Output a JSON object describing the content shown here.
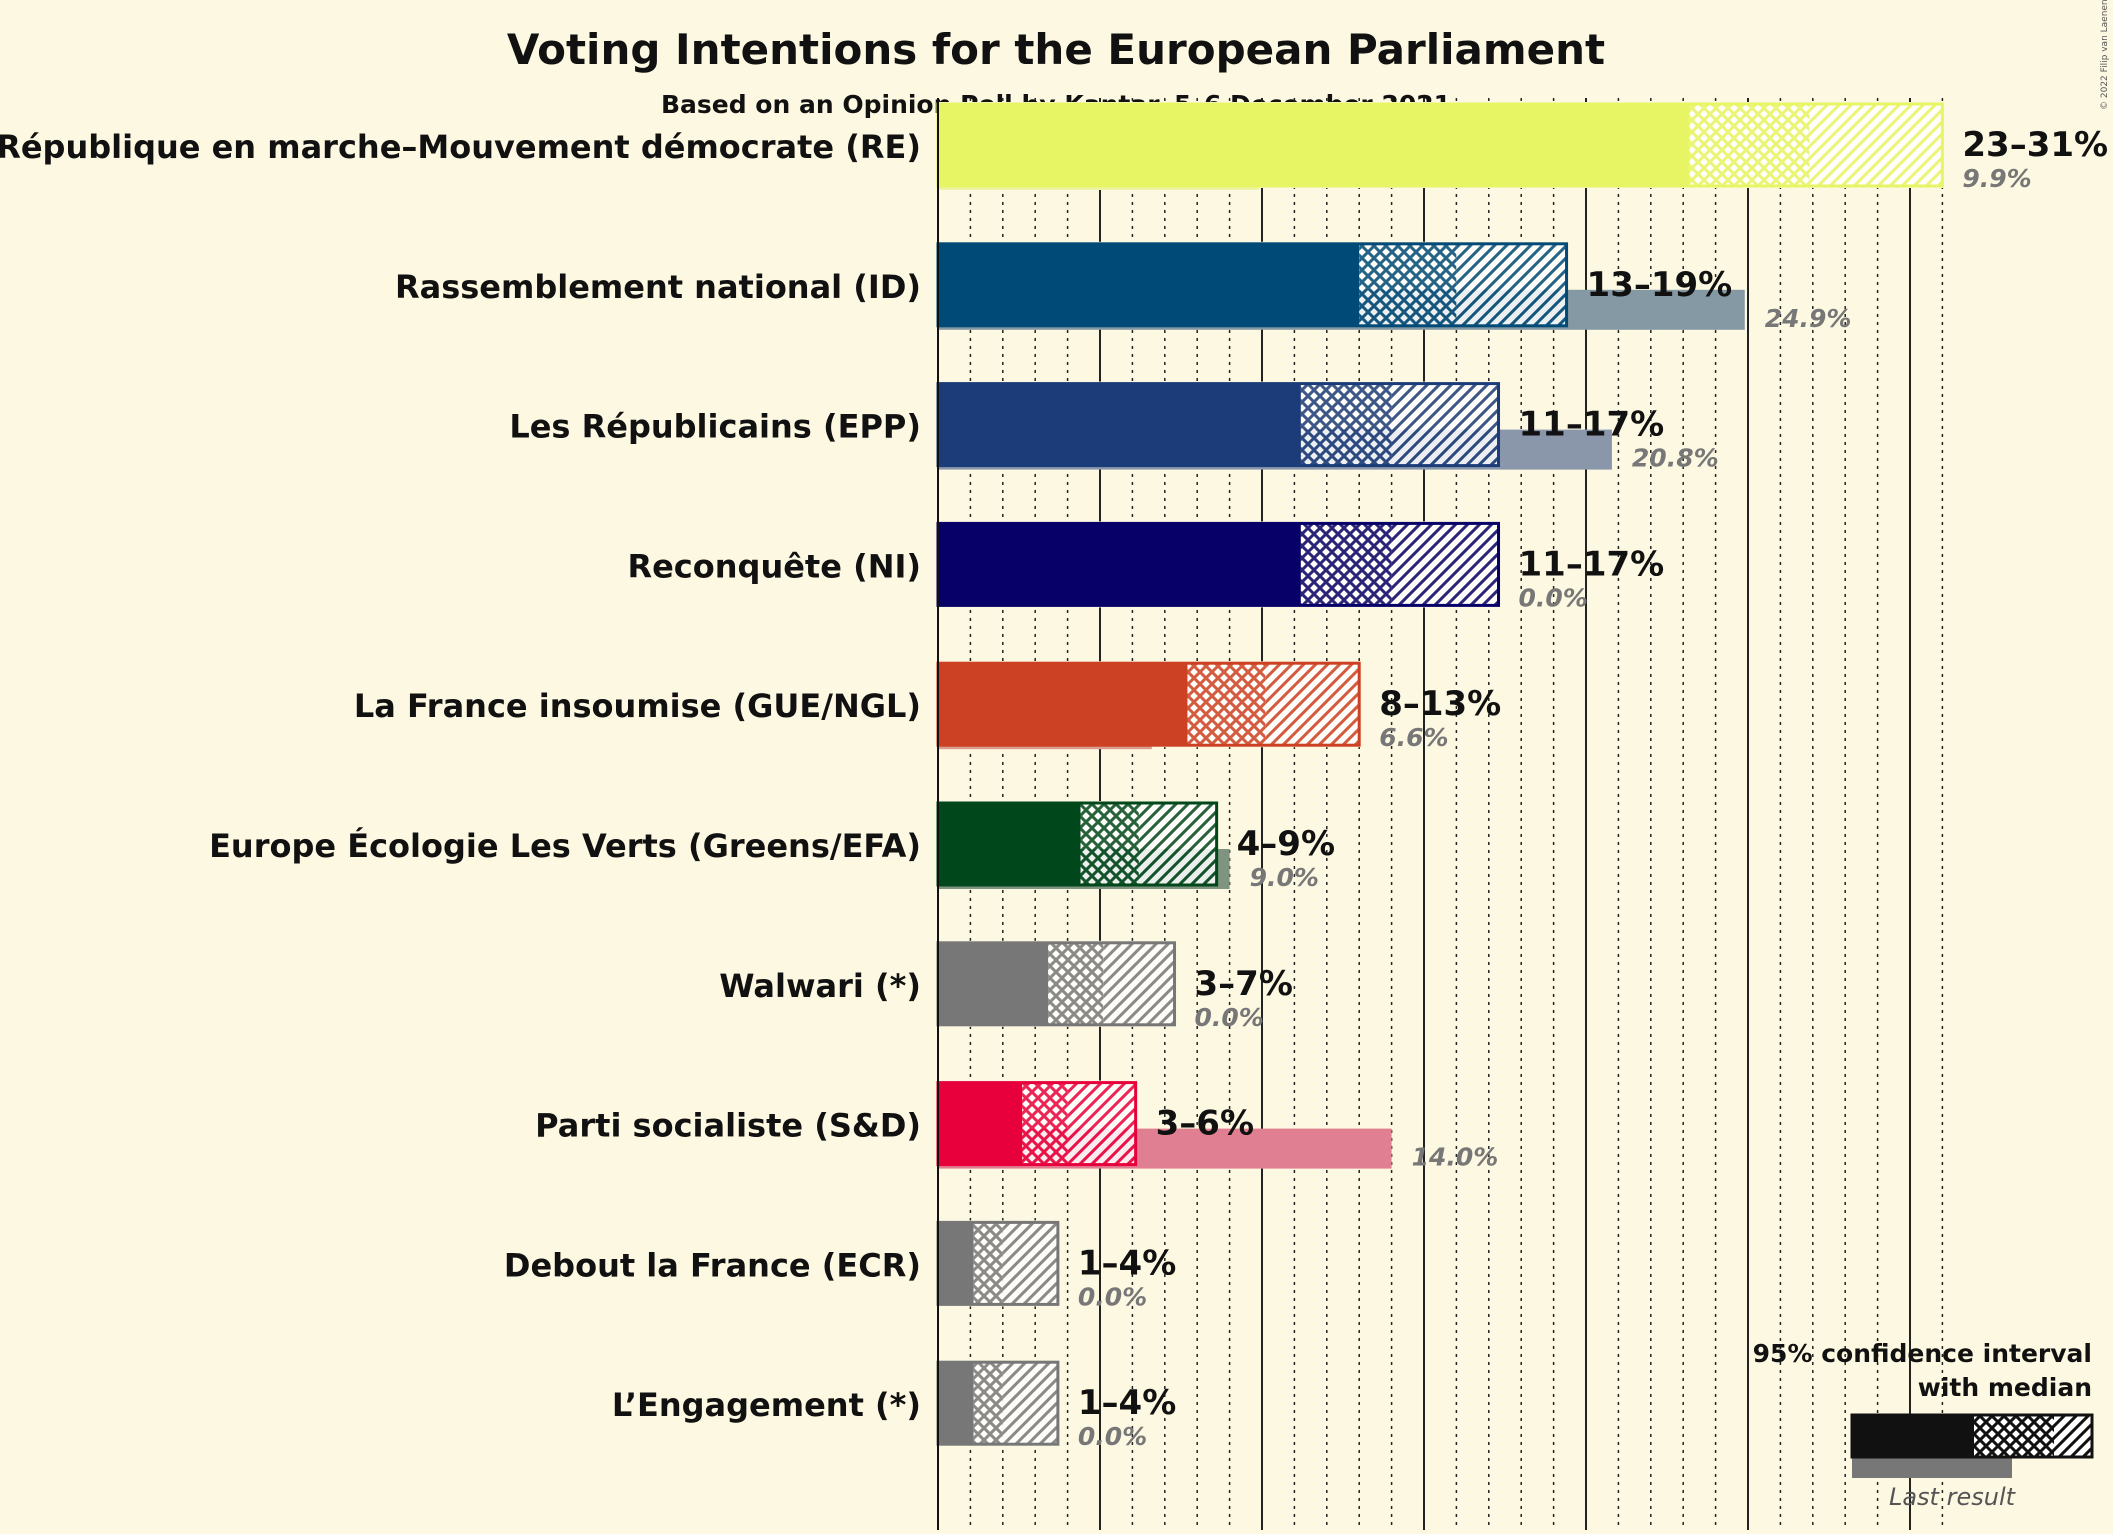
{
  "chart_data": {
    "type": "bar",
    "title": "Voting Intentions for the European Parliament",
    "subtitle": "Based on an Opinion Poll by Kantar, 5–6 December 2021",
    "copyright": "© 2022 Filip van Laenen",
    "xlim": [
      0,
      31
    ],
    "categories": [
      "La République en marche–Mouvement démocrate (RE)",
      "Rassemblement national (ID)",
      "Les Républicains (EPP)",
      "Reconquête (NI)",
      "La France insoumise (GUE/NGL)",
      "Europe Écologie Les Verts (Greens/EFA)",
      "Walwari (*)",
      "Parti socialiste (S&D)",
      "Debout la France (ECR)",
      "L’Engagement (*)"
    ],
    "series": [
      {
        "name": "95% confidence interval with median",
        "ci_low": [
          23.2,
          13.0,
          11.2,
          11.2,
          7.7,
          4.4,
          3.4,
          2.6,
          1.1,
          1.1
        ],
        "median": [
          26.9,
          16.0,
          14.0,
          14.0,
          10.1,
          6.2,
          5.1,
          4.0,
          2.0,
          2.0
        ],
        "ci_high": [
          31.0,
          19.4,
          17.3,
          17.3,
          13.0,
          8.6,
          7.3,
          6.1,
          3.7,
          3.7
        ],
        "range_labels": [
          "23–31%",
          "13–19%",
          "11–17%",
          "11–17%",
          "8–13%",
          "4–9%",
          "3–7%",
          "3–6%",
          "1–4%",
          "1–4%"
        ]
      },
      {
        "name": "Last result",
        "values": [
          9.9,
          24.9,
          20.8,
          0.0,
          6.6,
          9.0,
          0.0,
          14.0,
          0.0,
          0.0
        ],
        "labels": [
          "9.9%",
          "24.9%",
          "20.8%",
          "0.0%",
          "6.6%",
          "9.0%",
          "0.0%",
          "14.0%",
          "0.0%",
          "0.0%"
        ]
      }
    ],
    "colors": [
      "#e7f564",
      "#004a77",
      "#1b3c78",
      "#060068",
      "#cc4124",
      "#00471c",
      "#777777",
      "#e8003c",
      "#777777",
      "#777777"
    ],
    "last_colors": [
      "#eef2a6",
      "#8499a4",
      "#8a97ab",
      "#ffffff",
      "#d99c8f",
      "#7f947f",
      "#ffffff",
      "#e07f92",
      "#ffffff",
      "#ffffff"
    ],
    "legend": {
      "line1": "95% confidence interval",
      "line2": "with median",
      "last": "Last result",
      "position": "bottom-right"
    }
  }
}
